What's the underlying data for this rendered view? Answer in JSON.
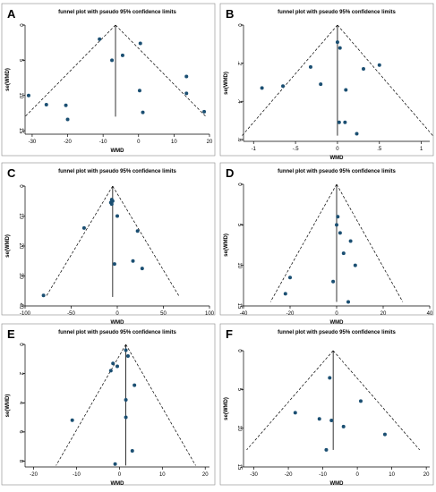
{
  "colors": {
    "point": "#1b4f72",
    "line": "#000000",
    "background": "#ffffff"
  },
  "chart_data": [
    {
      "type": "scatter",
      "panel": "A",
      "title": "funnel plot with pseudo 95% confidence limits",
      "xlabel": "WMD",
      "ylabel": "se(WMD)",
      "x_ticks": [
        -30,
        -20,
        -10,
        0,
        10,
        20
      ],
      "y_ticks": [
        0,
        5,
        10,
        15
      ],
      "xlim": [
        -32,
        20
      ],
      "ylim": [
        0,
        15.5
      ],
      "y_reversed": true,
      "pooled": -6.5,
      "apex_se": 0,
      "ci_se_max": 13.0,
      "points": [
        {
          "x": -11.0,
          "y": 2.0
        },
        {
          "x": 0.5,
          "y": 2.6
        },
        {
          "x": -4.5,
          "y": 4.3
        },
        {
          "x": -7.5,
          "y": 5.0
        },
        {
          "x": 13.5,
          "y": 7.3
        },
        {
          "x": 0.3,
          "y": 9.3
        },
        {
          "x": 13.5,
          "y": 9.7
        },
        {
          "x": -31.0,
          "y": 10.0
        },
        {
          "x": -26.0,
          "y": 11.3
        },
        {
          "x": -20.5,
          "y": 11.4
        },
        {
          "x": 1.2,
          "y": 12.4
        },
        {
          "x": 18.5,
          "y": 12.3
        },
        {
          "x": -20.0,
          "y": 13.4
        }
      ]
    },
    {
      "type": "scatter",
      "panel": "B",
      "title": "funnel plot with pseudo 95% confidence limits",
      "xlabel": "WMD",
      "ylabel": "se(WMD)",
      "x_ticks": [
        -1,
        -0.5,
        0,
        0.5,
        1
      ],
      "x_tick_labels": [
        "-1",
        "-.5",
        "0",
        ".5",
        "1"
      ],
      "y_ticks": [
        0,
        0.2,
        0.4,
        0.6
      ],
      "y_tick_labels": [
        "0",
        ".2",
        ".4",
        ".6"
      ],
      "xlim": [
        -1.12,
        1.1
      ],
      "ylim": [
        0,
        0.61
      ],
      "y_reversed": true,
      "pooled": 0.0,
      "apex_se": 0,
      "ci_se_max": 0.58,
      "points": [
        {
          "x": 0.0,
          "y": 0.09
        },
        {
          "x": 0.03,
          "y": 0.12
        },
        {
          "x": 0.5,
          "y": 0.21
        },
        {
          "x": -0.32,
          "y": 0.22
        },
        {
          "x": 0.31,
          "y": 0.23
        },
        {
          "x": -0.2,
          "y": 0.31
        },
        {
          "x": -0.65,
          "y": 0.32
        },
        {
          "x": -0.9,
          "y": 0.33
        },
        {
          "x": 0.1,
          "y": 0.34
        },
        {
          "x": 0.02,
          "y": 0.51
        },
        {
          "x": 0.09,
          "y": 0.51
        },
        {
          "x": 0.23,
          "y": 0.57
        }
      ]
    },
    {
      "type": "scatter",
      "panel": "C",
      "title": "funnel plot with pseudo 95% confidence limits",
      "xlabel": "WMD",
      "ylabel": "se(WMD)",
      "x_ticks": [
        -100,
        -50,
        0,
        50,
        100
      ],
      "y_ticks": [
        0,
        10,
        20,
        30,
        40
      ],
      "xlim": [
        -100,
        100
      ],
      "ylim": [
        0,
        40
      ],
      "y_reversed": true,
      "pooled": -5.0,
      "apex_se": 0,
      "ci_se_max": 37.0,
      "points": [
        {
          "x": -6.0,
          "y": 4.5
        },
        {
          "x": -5.0,
          "y": 5.0
        },
        {
          "x": -7.0,
          "y": 5.5
        },
        {
          "x": -6.0,
          "y": 6.0
        },
        {
          "x": -5.5,
          "y": 5.0
        },
        {
          "x": 0.0,
          "y": 10.0
        },
        {
          "x": -36.0,
          "y": 14.0
        },
        {
          "x": 22.0,
          "y": 15.0
        },
        {
          "x": 17.0,
          "y": 25.0
        },
        {
          "x": -3.0,
          "y": 26.0
        },
        {
          "x": 27.0,
          "y": 27.5
        },
        {
          "x": -80.0,
          "y": 36.5
        }
      ]
    },
    {
      "type": "scatter",
      "panel": "D",
      "title": "funnel plot with pseudo 95% confidence limits",
      "xlabel": "WMD",
      "ylabel": "se(WMD)",
      "x_ticks": [
        -40,
        -20,
        0,
        20,
        40
      ],
      "y_ticks": [
        0,
        5,
        10,
        15
      ],
      "xlim": [
        -40,
        40
      ],
      "ylim": [
        0,
        15
      ],
      "y_reversed": true,
      "pooled": 0.0,
      "apex_se": 0,
      "ci_se_max": 14.5,
      "points": [
        {
          "x": 0.5,
          "y": 4.0
        },
        {
          "x": 0.0,
          "y": 5.0
        },
        {
          "x": 1.5,
          "y": 6.0
        },
        {
          "x": 6.0,
          "y": 7.0
        },
        {
          "x": 3.0,
          "y": 8.5
        },
        {
          "x": 8.0,
          "y": 10.0
        },
        {
          "x": -20.0,
          "y": 11.5
        },
        {
          "x": -1.5,
          "y": 12.0
        },
        {
          "x": -22.0,
          "y": 13.5
        },
        {
          "x": 5.0,
          "y": 14.5
        }
      ]
    },
    {
      "type": "scatter",
      "panel": "E",
      "title": "funnel plot with pseudo 95% confidence limits",
      "xlabel": "WMD",
      "ylabel": "se(WMD)",
      "x_ticks": [
        -20,
        -10,
        0,
        10,
        20
      ],
      "y_ticks": [
        0,
        2,
        4,
        6,
        8
      ],
      "xlim": [
        -22,
        21
      ],
      "ylim": [
        0,
        8.4
      ],
      "y_reversed": true,
      "pooled": 1.5,
      "apex_se": 0,
      "ci_se_max": 8.3,
      "points": [
        {
          "x": 1.5,
          "y": 0.4
        },
        {
          "x": 2.0,
          "y": 0.8
        },
        {
          "x": -1.5,
          "y": 1.3
        },
        {
          "x": -0.5,
          "y": 1.5
        },
        {
          "x": -2.0,
          "y": 1.8
        },
        {
          "x": 3.5,
          "y": 2.8
        },
        {
          "x": 1.5,
          "y": 3.8
        },
        {
          "x": 1.5,
          "y": 5.0
        },
        {
          "x": -11.0,
          "y": 5.2
        },
        {
          "x": 3.0,
          "y": 7.3
        },
        {
          "x": -1.0,
          "y": 8.2
        }
      ]
    },
    {
      "type": "scatter",
      "panel": "F",
      "title": "funnel plot with pseudo 95% confidence limits",
      "xlabel": "WMD",
      "ylabel": "se(WMD)",
      "x_ticks": [
        -30,
        -20,
        -10,
        0,
        10,
        20
      ],
      "y_ticks": [
        0,
        5,
        10,
        15
      ],
      "xlim": [
        -33,
        21
      ],
      "ylim": [
        0,
        15
      ],
      "y_reversed": true,
      "pooled": -7.0,
      "apex_se": 0,
      "ci_se_max": 12.8,
      "points": [
        {
          "x": -8.0,
          "y": 3.5
        },
        {
          "x": 1.0,
          "y": 6.5
        },
        {
          "x": -18.0,
          "y": 8.0
        },
        {
          "x": -11.0,
          "y": 8.8
        },
        {
          "x": -7.5,
          "y": 9.0
        },
        {
          "x": -4.0,
          "y": 9.8
        },
        {
          "x": 8.0,
          "y": 10.8
        },
        {
          "x": -9.0,
          "y": 12.8
        }
      ]
    }
  ]
}
